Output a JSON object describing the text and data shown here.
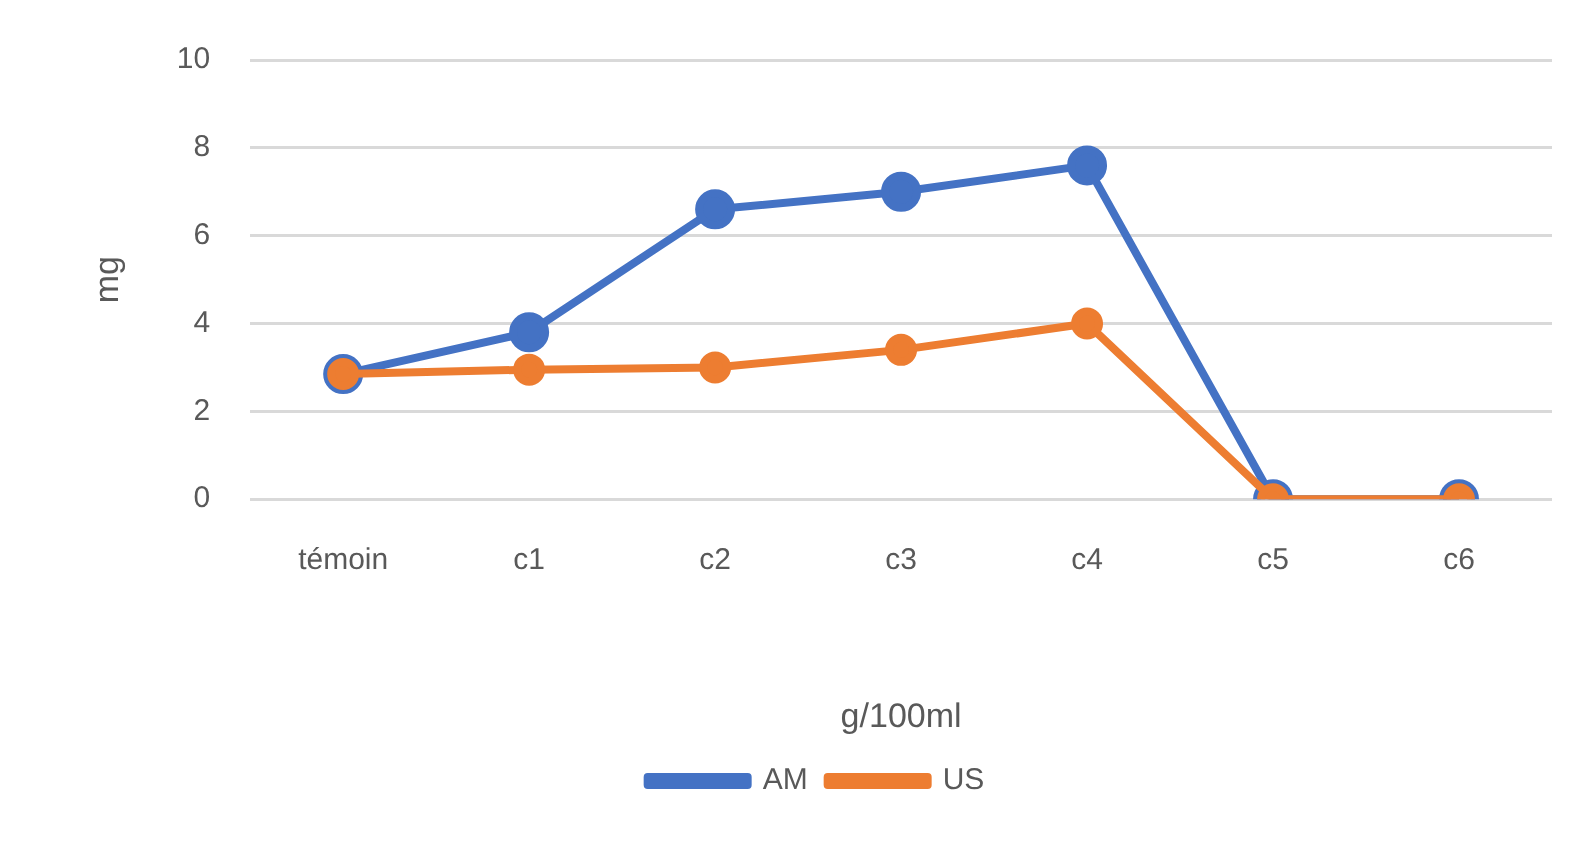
{
  "chart_data": {
    "type": "line",
    "xlabel": "g/100ml",
    "ylabel": "mg",
    "categories": [
      "témoin",
      "c1",
      "c2",
      "c3",
      "c4",
      "c5",
      "c6"
    ],
    "series": [
      {
        "name": "AM",
        "color": "#4472c4",
        "values": [
          2.85,
          3.8,
          6.6,
          7.0,
          7.6,
          0,
          0
        ]
      },
      {
        "name": "US",
        "color": "#ed7d31",
        "values": [
          2.85,
          2.95,
          3.0,
          3.4,
          4.0,
          0,
          0
        ]
      }
    ],
    "ylim": [
      0,
      10
    ],
    "yticks": [
      0,
      2,
      4,
      6,
      8,
      10
    ],
    "grid": "y",
    "legend": "bottom",
    "marker": "circle",
    "line_style": "solid"
  }
}
